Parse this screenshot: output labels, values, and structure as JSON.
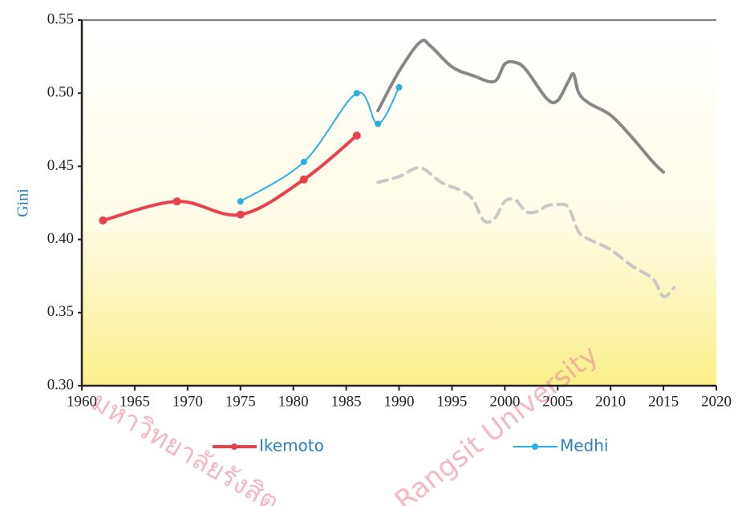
{
  "chart_data": {
    "type": "line",
    "y_label": "Gini",
    "watermark": [
      "มหาวิทยาลัยรังสิต",
      "Rangsit University"
    ],
    "xlim": [
      1960,
      2020
    ],
    "xticks": [
      1960,
      1965,
      1970,
      1975,
      1980,
      1985,
      1990,
      1995,
      2000,
      2005,
      2010,
      2015,
      2020
    ],
    "ylim": [
      0.3,
      0.55
    ],
    "yticks": [
      {
        "value": 0.3,
        "label": "0.30"
      },
      0.35,
      {
        "value": 0.4,
        "label": "0.40"
      },
      0.45,
      {
        "value": 0.5,
        "label": "0.50"
      },
      0.55
    ],
    "series": [
      {
        "name": "Ikemoto",
        "color": "#e8414a",
        "markers": true,
        "x": [
          1962,
          1969,
          1975,
          1981,
          1986
        ],
        "values": [
          0.413,
          0.426,
          0.417,
          0.441,
          0.471
        ]
      },
      {
        "name": "Medhi",
        "color": "#29b0e4",
        "markers": true,
        "x": [
          1975,
          1981,
          1986,
          1988,
          1990
        ],
        "values": [
          0.426,
          0.453,
          0.5,
          0.479,
          0.504
        ]
      },
      {
        "color": "#888888",
        "x": [
          1988,
          1990,
          1992,
          1993,
          1995,
          1997,
          1999,
          2000,
          2001,
          2002,
          2004,
          2005,
          2006,
          2006.5,
          2007,
          2008,
          2010,
          2012,
          2014,
          2015
        ],
        "values": [
          0.488,
          0.515,
          0.535,
          0.532,
          0.518,
          0.512,
          0.508,
          0.52,
          0.521,
          0.516,
          0.496,
          0.495,
          0.508,
          0.513,
          0.5,
          0.493,
          0.485,
          0.47,
          0.453,
          0.446
        ]
      },
      {
        "color": "#c8c8c8",
        "dash": true,
        "x": [
          1988,
          1990,
          1992,
          1994,
          1996,
          1997,
          1998,
          1999,
          2000,
          2001,
          2002,
          2003,
          2004,
          2005,
          2006,
          2007,
          2008,
          2010,
          2012,
          2014,
          2015,
          2016
        ],
        "values": [
          0.439,
          0.443,
          0.449,
          0.439,
          0.433,
          0.427,
          0.413,
          0.414,
          0.426,
          0.427,
          0.419,
          0.419,
          0.423,
          0.424,
          0.422,
          0.405,
          0.4,
          0.393,
          0.382,
          0.373,
          0.361,
          0.367
        ]
      }
    ]
  }
}
